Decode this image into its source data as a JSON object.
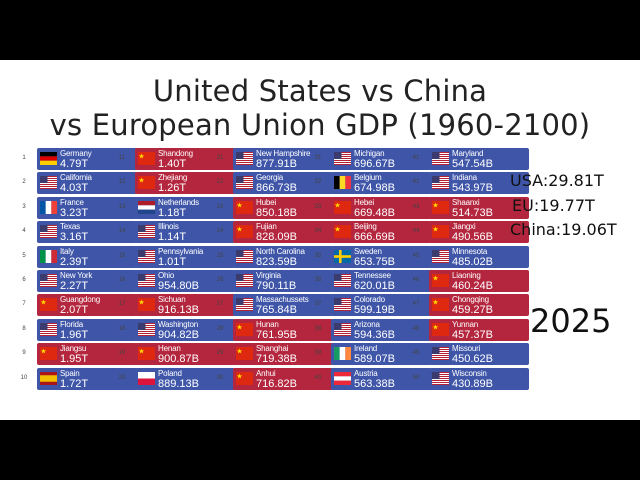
{
  "title_line1": "United States vs China",
  "title_line2": "vs European Union GDP (1960-2100)",
  "year": "2025",
  "totals": [
    {
      "label": "USA:29.81T"
    },
    {
      "label": "EU:19.77T"
    },
    {
      "label": "China:19.06T"
    }
  ],
  "colors": {
    "us": "#3f56a8",
    "china": "#b3263d"
  },
  "entries": [
    {
      "rank": "1",
      "name": "Germany",
      "value": "4.79T",
      "flag": "germany",
      "bg": "eu"
    },
    {
      "rank": "2",
      "name": "California",
      "value": "4.03T",
      "flag": "usa",
      "bg": "us"
    },
    {
      "rank": "3",
      "name": "France",
      "value": "3.23T",
      "flag": "france",
      "bg": "eu"
    },
    {
      "rank": "4",
      "name": "Texas",
      "value": "3.16T",
      "flag": "usa",
      "bg": "us"
    },
    {
      "rank": "5",
      "name": "Italy",
      "value": "2.39T",
      "flag": "italy",
      "bg": "eu"
    },
    {
      "rank": "6",
      "name": "New York",
      "value": "2.27T",
      "flag": "usa",
      "bg": "us"
    },
    {
      "rank": "7",
      "name": "Guangdong",
      "value": "2.07T",
      "flag": "china",
      "bg": "cn"
    },
    {
      "rank": "8",
      "name": "Florida",
      "value": "1.96T",
      "flag": "usa",
      "bg": "us"
    },
    {
      "rank": "9",
      "name": "Jiangsu",
      "value": "1.95T",
      "flag": "china",
      "bg": "cn"
    },
    {
      "rank": "10",
      "name": "Spain",
      "value": "1.72T",
      "flag": "spain",
      "bg": "eu"
    },
    {
      "rank": "11",
      "name": "Shandong",
      "value": "1.40T",
      "flag": "china",
      "bg": "cn"
    },
    {
      "rank": "12",
      "name": "Zhejiang",
      "value": "1.26T",
      "flag": "china",
      "bg": "cn"
    },
    {
      "rank": "13",
      "name": "Netherlands",
      "value": "1.18T",
      "flag": "netherlands",
      "bg": "eu"
    },
    {
      "rank": "14",
      "name": "Illinois",
      "value": "1.14T",
      "flag": "usa",
      "bg": "us"
    },
    {
      "rank": "15",
      "name": "Pennsylvania",
      "value": "1.01T",
      "flag": "usa",
      "bg": "us"
    },
    {
      "rank": "16",
      "name": "Ohio",
      "value": "954.80B",
      "flag": "usa",
      "bg": "us"
    },
    {
      "rank": "17",
      "name": "Sichuan",
      "value": "916.13B",
      "flag": "china",
      "bg": "cn"
    },
    {
      "rank": "18",
      "name": "Washington",
      "value": "904.82B",
      "flag": "usa",
      "bg": "us"
    },
    {
      "rank": "19",
      "name": "Henan",
      "value": "900.87B",
      "flag": "china",
      "bg": "cn"
    },
    {
      "rank": "20",
      "name": "Poland",
      "value": "889.13B",
      "flag": "poland",
      "bg": "eu"
    },
    {
      "rank": "21",
      "name": "New Hampshire",
      "value": "877.91B",
      "flag": "usa",
      "bg": "us"
    },
    {
      "rank": "22",
      "name": "Georgia",
      "value": "866.73B",
      "flag": "usa",
      "bg": "us"
    },
    {
      "rank": "23",
      "name": "Hubei",
      "value": "850.18B",
      "flag": "china",
      "bg": "cn"
    },
    {
      "rank": "24",
      "name": "Fujian",
      "value": "828.09B",
      "flag": "china",
      "bg": "cn"
    },
    {
      "rank": "25",
      "name": "North Carolina",
      "value": "823.59B",
      "flag": "usa",
      "bg": "us"
    },
    {
      "rank": "26",
      "name": "Virginia",
      "value": "790.11B",
      "flag": "usa",
      "bg": "us"
    },
    {
      "rank": "27",
      "name": "Massachussets",
      "value": "765.84B",
      "flag": "usa",
      "bg": "us"
    },
    {
      "rank": "28",
      "name": "Hunan",
      "value": "761.95B",
      "flag": "china",
      "bg": "cn"
    },
    {
      "rank": "29",
      "name": "Shanghai",
      "value": "719.38B",
      "flag": "china",
      "bg": "cn"
    },
    {
      "rank": "30",
      "name": "Anhui",
      "value": "716.82B",
      "flag": "china",
      "bg": "cn"
    },
    {
      "rank": "31",
      "name": "Michigan",
      "value": "696.67B",
      "flag": "usa",
      "bg": "us"
    },
    {
      "rank": "32",
      "name": "Belgium",
      "value": "674.98B",
      "flag": "belgium",
      "bg": "eu"
    },
    {
      "rank": "33",
      "name": "Hebei",
      "value": "669.48B",
      "flag": "china",
      "bg": "cn"
    },
    {
      "rank": "34",
      "name": "Beijing",
      "value": "666.69B",
      "flag": "china",
      "bg": "cn"
    },
    {
      "rank": "35",
      "name": "Sweden",
      "value": "653.75B",
      "flag": "sweden",
      "bg": "eu"
    },
    {
      "rank": "36",
      "name": "Tennessee",
      "value": "620.01B",
      "flag": "usa",
      "bg": "us"
    },
    {
      "rank": "37",
      "name": "Colorado",
      "value": "599.19B",
      "flag": "usa",
      "bg": "us"
    },
    {
      "rank": "38",
      "name": "Arizona",
      "value": "594.36B",
      "flag": "usa",
      "bg": "us"
    },
    {
      "rank": "39",
      "name": "Ireland",
      "value": "589.07B",
      "flag": "ireland",
      "bg": "eu"
    },
    {
      "rank": "40",
      "name": "Austria",
      "value": "563.38B",
      "flag": "austria",
      "bg": "eu"
    },
    {
      "rank": "41",
      "name": "Maryland",
      "value": "547.54B",
      "flag": "usa",
      "bg": "us"
    },
    {
      "rank": "42",
      "name": "Indiana",
      "value": "543.97B",
      "flag": "usa",
      "bg": "us"
    },
    {
      "rank": "43",
      "name": "Shaanxi",
      "value": "514.73B",
      "flag": "china",
      "bg": "cn"
    },
    {
      "rank": "44",
      "name": "Jiangxi",
      "value": "490.56B",
      "flag": "china",
      "bg": "cn"
    },
    {
      "rank": "45",
      "name": "Minnesota",
      "value": "485.02B",
      "flag": "usa",
      "bg": "us"
    },
    {
      "rank": "46",
      "name": "Liaoning",
      "value": "460.24B",
      "flag": "china",
      "bg": "cn"
    },
    {
      "rank": "47",
      "name": "Chongqing",
      "value": "459.27B",
      "flag": "china",
      "bg": "cn"
    },
    {
      "rank": "48",
      "name": "Yunnan",
      "value": "457.37B",
      "flag": "china",
      "bg": "cn"
    },
    {
      "rank": "49",
      "name": "Missouri",
      "value": "450.62B",
      "flag": "usa",
      "bg": "us"
    },
    {
      "rank": "50",
      "name": "Wisconsin",
      "value": "430.89B",
      "flag": "usa",
      "bg": "us"
    }
  ]
}
